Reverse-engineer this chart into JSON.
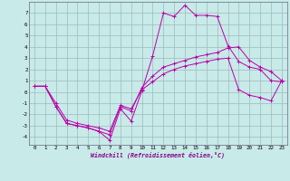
{
  "xlabel": "Windchill (Refroidissement éolien,°C)",
  "background_color": "#c8eae8",
  "grid_color": "#9cbcbc",
  "line_color": "#bb00aa",
  "xlim": [
    -0.5,
    23.5
  ],
  "ylim": [
    -4.7,
    8.0
  ],
  "xticks": [
    0,
    1,
    2,
    3,
    4,
    5,
    6,
    7,
    8,
    9,
    10,
    11,
    12,
    13,
    14,
    15,
    16,
    17,
    18,
    19,
    20,
    21,
    22,
    23
  ],
  "yticks": [
    -4,
    -3,
    -2,
    -1,
    0,
    1,
    2,
    3,
    4,
    5,
    6,
    7
  ],
  "line1_x": [
    0,
    1,
    2,
    3,
    4,
    5,
    6,
    7,
    8,
    9,
    10,
    11,
    12,
    13,
    14,
    15,
    16,
    17,
    18,
    19,
    20,
    21,
    22,
    23
  ],
  "line1_y": [
    0.5,
    0.5,
    -1.3,
    -2.8,
    -3.0,
    -3.2,
    -3.5,
    -4.3,
    -1.5,
    -2.6,
    0.1,
    3.2,
    7.0,
    6.7,
    7.7,
    6.8,
    6.8,
    6.7,
    4.1,
    2.7,
    2.2,
    2.0,
    1.0,
    0.9
  ],
  "line2_x": [
    0,
    1,
    2,
    3,
    4,
    5,
    6,
    7,
    8,
    9,
    10,
    11,
    12,
    13,
    14,
    15,
    16,
    17,
    18,
    19,
    20,
    21,
    22,
    23
  ],
  "line2_y": [
    0.5,
    0.5,
    -1.3,
    -2.8,
    -3.0,
    -3.2,
    -3.5,
    -3.8,
    -1.3,
    -1.7,
    0.4,
    1.4,
    2.2,
    2.5,
    2.8,
    3.1,
    3.3,
    3.5,
    3.9,
    4.0,
    2.8,
    2.2,
    1.8,
    1.0
  ],
  "line3_x": [
    0,
    1,
    2,
    3,
    4,
    5,
    6,
    7,
    8,
    9,
    10,
    11,
    12,
    13,
    14,
    15,
    16,
    17,
    18,
    19,
    20,
    21,
    22,
    23
  ],
  "line3_y": [
    0.5,
    0.5,
    -1.0,
    -2.5,
    -2.8,
    -3.0,
    -3.2,
    -3.5,
    -1.2,
    -1.5,
    0.2,
    0.9,
    1.6,
    2.0,
    2.3,
    2.5,
    2.7,
    2.9,
    3.0,
    0.2,
    -0.3,
    -0.5,
    -0.8,
    1.0
  ]
}
